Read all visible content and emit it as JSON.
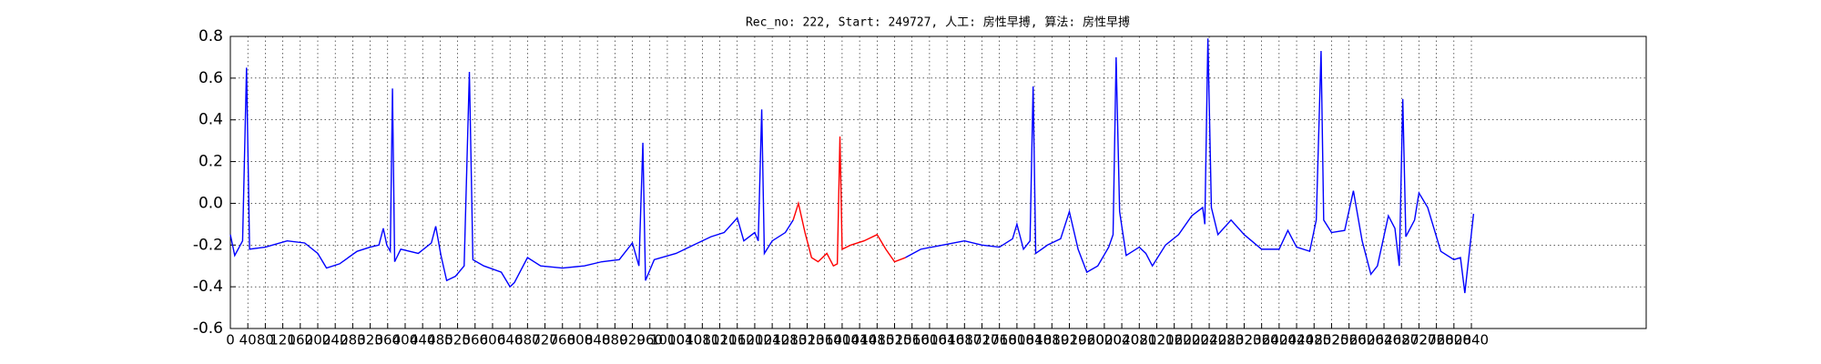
{
  "chart_data": {
    "type": "line",
    "title": "Rec_no: 222, Start: 249727, 人工: 房性早搏, 算法: 房性早搏",
    "xlim": [
      0,
      3240
    ],
    "ylim": [
      -0.6,
      0.8
    ],
    "yticks": [
      -0.6,
      -0.4,
      -0.2,
      {
        "value": 0,
        "label": "0.0"
      },
      0.2,
      0.4,
      0.6,
      0.8
    ],
    "xticks": [
      0,
      40,
      80,
      120,
      160,
      200,
      240,
      280,
      320,
      360,
      400,
      440,
      480,
      520,
      560,
      600,
      640,
      680,
      720,
      760,
      800,
      840,
      880,
      920,
      960,
      1000,
      1040,
      1080,
      1120,
      1160,
      1200,
      1240,
      1280,
      1320,
      1360,
      1400,
      1440,
      1480,
      1520,
      1560,
      1600,
      1640,
      1680,
      1720,
      1760,
      1800,
      1840,
      1880,
      1920,
      1960,
      2000,
      2040,
      2080,
      2120,
      2160,
      2200,
      2240,
      2280,
      2320,
      2360,
      2400,
      2440,
      2480,
      2520,
      2560,
      2600,
      2640,
      2680,
      2720,
      2760,
      2800,
      2840
    ],
    "grid": true,
    "series": [
      {
        "color": "#0000ff",
        "x": [
          0,
          10,
          28,
          37,
          44,
          80,
          130,
          170,
          200,
          220,
          250,
          290,
          320,
          340,
          350,
          358,
          366,
          371,
          376,
          390,
          430,
          460,
          470,
          482,
          495,
          515,
          535,
          547,
          555,
          580,
          620,
          640,
          650,
          680,
          710,
          760,
          810,
          850,
          890,
          920,
          935,
          944,
          950,
          970,
          1020,
          1060,
          1100,
          1130,
          1160,
          1175,
          1200,
          1208,
          1216,
          1222,
          1240,
          1270,
          1288,
          1400,
          1545,
          1580,
          1630,
          1680,
          1720,
          1760,
          1790,
          1800,
          1815,
          1830,
          1837,
          1843,
          1870,
          1900,
          1920,
          1940,
          1960,
          1985,
          2010,
          2020,
          2027,
          2035,
          2050,
          2080,
          2095,
          2110,
          2140,
          2170,
          2200,
          2225,
          2230,
          2237,
          2245,
          2260,
          2290,
          2320,
          2360,
          2400,
          2420,
          2440,
          2470,
          2485,
          2496,
          2502,
          2520,
          2550,
          2570,
          2590,
          2610,
          2625,
          2650,
          2665,
          2675,
          2683,
          2690,
          2710,
          2720,
          2740,
          2770,
          2800,
          2815,
          2825,
          2845
        ],
        "values": [
          -0.15,
          -0.25,
          -0.18,
          0.65,
          -0.22,
          -0.21,
          -0.18,
          -0.19,
          -0.24,
          -0.31,
          -0.29,
          -0.23,
          -0.21,
          -0.2,
          -0.12,
          -0.2,
          -0.23,
          0.55,
          -0.28,
          -0.22,
          -0.24,
          -0.19,
          -0.11,
          -0.25,
          -0.37,
          -0.35,
          -0.3,
          0.63,
          -0.27,
          -0.3,
          -0.33,
          -0.4,
          -0.38,
          -0.26,
          -0.3,
          -0.31,
          -0.3,
          -0.28,
          -0.27,
          -0.19,
          -0.3,
          0.29,
          -0.37,
          -0.27,
          -0.24,
          -0.2,
          -0.16,
          -0.14,
          -0.07,
          -0.18,
          -0.14,
          -0.18,
          0.45,
          -0.24,
          -0.18,
          -0.14,
          -0.08,
          null,
          -0.26,
          -0.22,
          -0.2,
          -0.18,
          -0.2,
          -0.21,
          -0.17,
          -0.1,
          -0.22,
          -0.18,
          0.56,
          -0.24,
          -0.2,
          -0.17,
          -0.04,
          -0.22,
          -0.33,
          -0.3,
          -0.21,
          -0.15,
          0.7,
          -0.04,
          -0.25,
          -0.21,
          -0.24,
          -0.3,
          -0.2,
          -0.15,
          -0.06,
          -0.02,
          -0.1,
          0.79,
          -0.02,
          -0.15,
          -0.08,
          -0.15,
          -0.22,
          -0.22,
          -0.13,
          -0.21,
          -0.23,
          -0.08,
          0.73,
          -0.08,
          -0.14,
          -0.13,
          0.06,
          -0.18,
          -0.34,
          -0.3,
          -0.06,
          -0.12,
          -0.3,
          0.5,
          -0.16,
          -0.08,
          0.05,
          -0.02,
          -0.23,
          -0.27,
          -0.26,
          -0.43,
          -0.05
        ]
      },
      {
        "color": "#ff0000",
        "x": [
          1288,
          1300,
          1315,
          1330,
          1345,
          1365,
          1380,
          1389,
          1395,
          1400,
          1420,
          1450,
          1480,
          1500,
          1520,
          1545
        ],
        "values": [
          -0.08,
          0.0,
          -0.14,
          -0.26,
          -0.28,
          -0.24,
          -0.3,
          -0.29,
          0.32,
          -0.22,
          -0.2,
          -0.18,
          -0.15,
          -0.22,
          -0.28,
          -0.26
        ]
      }
    ]
  }
}
